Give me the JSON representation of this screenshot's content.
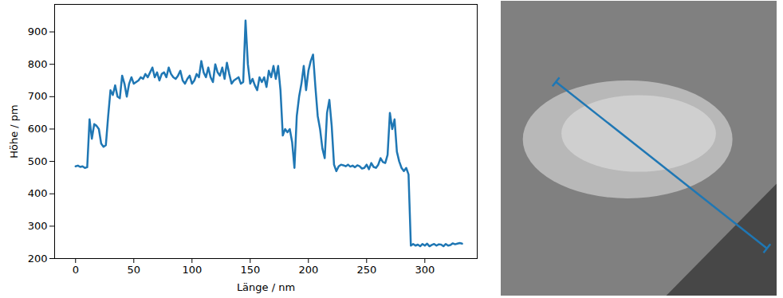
{
  "chart_data": {
    "type": "line",
    "x_label": "Länge / nm",
    "y_label": "Höhe / pm",
    "color": "#1f77b4",
    "xlim": [
      -18,
      345
    ],
    "ylim": [
      200,
      985
    ],
    "xticks": [
      0,
      50,
      100,
      150,
      200,
      250,
      300
    ],
    "yticks": [
      200,
      300,
      400,
      500,
      600,
      700,
      800,
      900
    ],
    "x": [
      0,
      2,
      4,
      6,
      8,
      10,
      12,
      13,
      14,
      16,
      18,
      20,
      22,
      24,
      26,
      28,
      30,
      32,
      34,
      36,
      38,
      40,
      42,
      44,
      46,
      48,
      50,
      52,
      54,
      56,
      58,
      60,
      62,
      64,
      66,
      68,
      70,
      72,
      74,
      76,
      78,
      80,
      82,
      84,
      86,
      88,
      90,
      92,
      94,
      96,
      98,
      100,
      102,
      104,
      106,
      108,
      110,
      112,
      114,
      116,
      118,
      120,
      122,
      124,
      126,
      128,
      130,
      132,
      134,
      136,
      138,
      140,
      142,
      144,
      146,
      148,
      150,
      152,
      154,
      156,
      158,
      160,
      162,
      164,
      166,
      168,
      170,
      172,
      174,
      176,
      178,
      180,
      182,
      184,
      186,
      188,
      190,
      192,
      194,
      196,
      198,
      200,
      202,
      204,
      206,
      208,
      210,
      212,
      214,
      216,
      218,
      220,
      222,
      224,
      226,
      228,
      230,
      232,
      234,
      236,
      238,
      240,
      242,
      244,
      246,
      248,
      250,
      252,
      254,
      256,
      258,
      260,
      262,
      264,
      266,
      268,
      270,
      272,
      274,
      276,
      278,
      280,
      282,
      284,
      286,
      288,
      290,
      292,
      294,
      296,
      298,
      300,
      302,
      304,
      306,
      308,
      310,
      312,
      314,
      316,
      318,
      320,
      322,
      324,
      326,
      328,
      330,
      332
    ],
    "values": [
      485,
      487,
      483,
      485,
      480,
      482,
      630,
      600,
      570,
      615,
      610,
      600,
      555,
      545,
      550,
      640,
      720,
      705,
      735,
      700,
      695,
      765,
      740,
      700,
      740,
      760,
      740,
      745,
      750,
      760,
      755,
      770,
      760,
      775,
      790,
      760,
      775,
      750,
      770,
      775,
      760,
      790,
      770,
      760,
      755,
      765,
      780,
      750,
      740,
      755,
      765,
      740,
      750,
      770,
      760,
      810,
      775,
      760,
      790,
      760,
      745,
      800,
      775,
      765,
      790,
      755,
      805,
      770,
      740,
      750,
      755,
      760,
      740,
      745,
      935,
      800,
      740,
      755,
      735,
      720,
      760,
      745,
      760,
      730,
      780,
      760,
      795,
      755,
      795,
      720,
      580,
      600,
      590,
      600,
      560,
      480,
      640,
      700,
      740,
      795,
      720,
      780,
      810,
      830,
      730,
      640,
      600,
      540,
      510,
      650,
      690,
      610,
      490,
      470,
      485,
      490,
      488,
      485,
      490,
      484,
      487,
      482,
      488,
      485,
      478,
      480,
      490,
      476,
      495,
      483,
      480,
      490,
      510,
      498,
      495,
      520,
      650,
      600,
      630,
      530,
      500,
      480,
      470,
      480,
      460,
      240,
      245,
      240,
      243,
      238,
      245,
      240,
      246,
      238,
      242,
      245,
      240,
      244,
      243,
      238,
      245,
      240,
      242,
      247,
      244,
      246,
      248,
      246
    ]
  }
}
